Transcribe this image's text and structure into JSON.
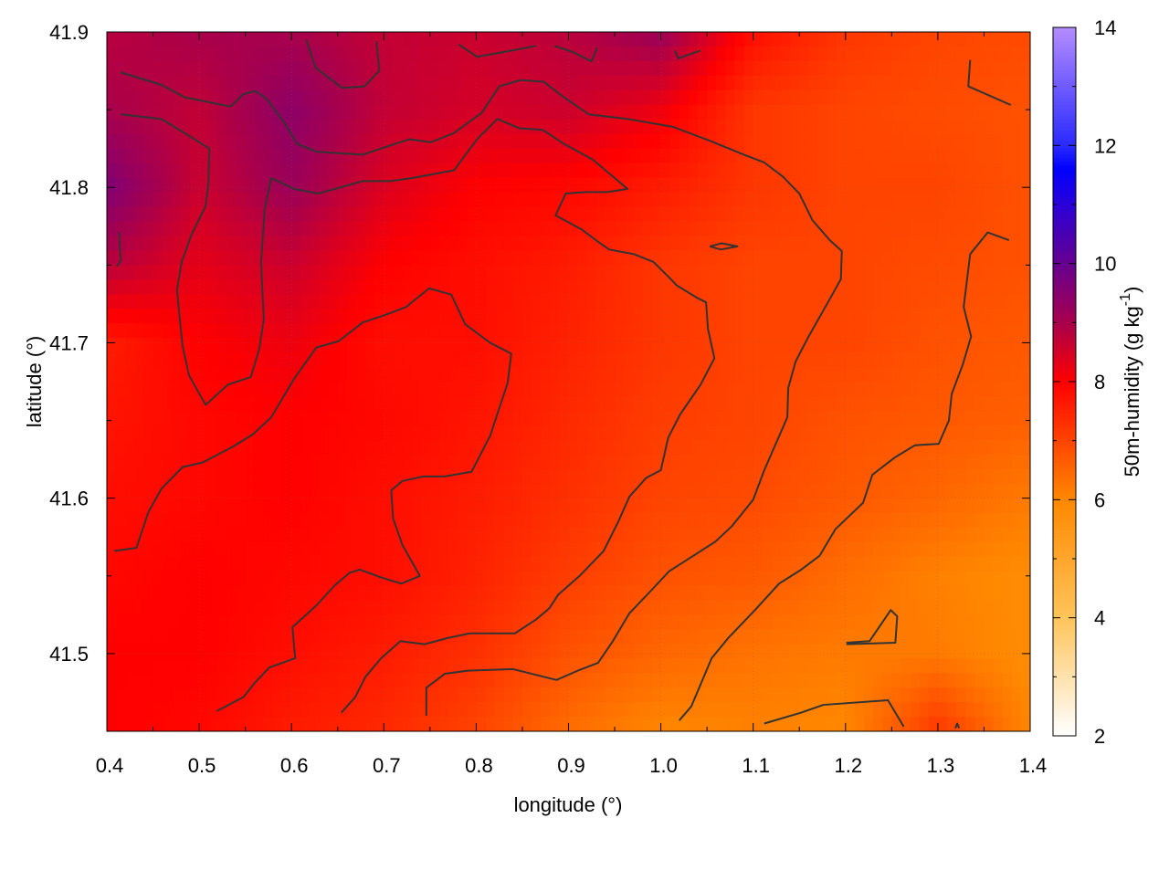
{
  "chart_data": {
    "type": "heatmap",
    "title": "",
    "xlabel": "longitude (°)",
    "ylabel": "latitude (°)",
    "colorbar_label": "50m-humidity (g kg",
    "colorbar_label_sup": "-1",
    "colorbar_label_end": ")",
    "xlim": [
      0.4,
      1.4
    ],
    "ylim": [
      41.45,
      41.9
    ],
    "clim": [
      2,
      14
    ],
    "x_ticks": [
      0.4,
      0.5,
      0.6,
      0.7,
      0.8,
      0.9,
      1.0,
      1.1,
      1.2,
      1.3,
      1.4
    ],
    "x_tick_labels": [
      "0.4",
      "0.5",
      "0.6",
      "0.7",
      "0.8",
      "0.9",
      "1.0",
      "1.1",
      "1.2",
      "1.3",
      "1.4"
    ],
    "y_ticks": [
      41.5,
      41.6,
      41.7,
      41.8,
      41.9
    ],
    "y_tick_labels": [
      "41.5",
      "41.6",
      "41.7",
      "41.8",
      "41.9"
    ],
    "c_ticks": [
      2,
      4,
      6,
      8,
      10,
      12,
      14
    ],
    "c_tick_labels": [
      "2",
      "4",
      "6",
      "8",
      "10",
      "12",
      "14"
    ],
    "grid": true,
    "colormap": [
      {
        "v": 2,
        "color": "#ffffff"
      },
      {
        "v": 4,
        "color": "#ffc45a"
      },
      {
        "v": 6,
        "color": "#ff8800"
      },
      {
        "v": 8,
        "color": "#ff0000"
      },
      {
        "v": 9,
        "color": "#a8004c"
      },
      {
        "v": 10,
        "color": "#660090"
      },
      {
        "v": 11,
        "color": "#2a00d8"
      },
      {
        "v": 11.6,
        "color": "#0000ff"
      },
      {
        "v": 12,
        "color": "#2a2aff"
      },
      {
        "v": 14,
        "color": "#b48cff"
      }
    ],
    "grid_lon": [
      0.4,
      0.5,
      0.6,
      0.7,
      0.8,
      0.9,
      1.0,
      1.1,
      1.2,
      1.3,
      1.4
    ],
    "grid_lat": [
      41.9,
      41.85,
      41.8,
      41.75,
      41.7,
      41.65,
      41.6,
      41.55,
      41.5,
      41.45
    ],
    "values": [
      [
        8.8,
        9.0,
        9.0,
        8.7,
        8.6,
        8.8,
        9.2,
        7.8,
        7.2,
        7.0,
        6.9
      ],
      [
        9.0,
        8.7,
        9.4,
        8.7,
        8.5,
        8.6,
        8.2,
        7.2,
        7.0,
        6.9,
        6.8
      ],
      [
        9.6,
        8.6,
        9.2,
        8.4,
        8.0,
        7.9,
        7.6,
        7.2,
        7.0,
        7.0,
        6.8
      ],
      [
        8.8,
        8.3,
        8.6,
        8.0,
        7.8,
        7.6,
        7.2,
        7.0,
        7.0,
        6.9,
        6.8
      ],
      [
        7.6,
        8.0,
        8.2,
        7.8,
        7.8,
        7.5,
        7.2,
        7.0,
        7.0,
        6.8,
        6.7
      ],
      [
        7.7,
        7.9,
        8.0,
        7.9,
        7.7,
        7.4,
        7.1,
        7.0,
        6.8,
        6.7,
        6.6
      ],
      [
        7.8,
        7.9,
        8.0,
        7.8,
        7.6,
        7.3,
        7.0,
        6.9,
        6.7,
        6.5,
        6.2
      ],
      [
        7.9,
        8.0,
        7.9,
        7.8,
        7.5,
        7.1,
        6.8,
        6.7,
        6.4,
        6.1,
        5.9
      ],
      [
        8.0,
        8.0,
        7.8,
        7.6,
        7.3,
        6.8,
        6.5,
        6.3,
        6.2,
        6.2,
        5.9
      ],
      [
        8.0,
        7.9,
        7.6,
        7.4,
        7.0,
        6.4,
        6.0,
        6.1,
        6.0,
        7.2,
        6.0
      ]
    ],
    "contour_color": "#333333",
    "contours": [
      [
        [
          0.415,
          41.874
        ],
        [
          0.459,
          41.866
        ],
        [
          0.484,
          41.858
        ],
        [
          0.534,
          41.852
        ],
        [
          0.548,
          41.86
        ],
        [
          0.561,
          41.862
        ],
        [
          0.573,
          41.857
        ],
        [
          0.593,
          41.841
        ],
        [
          0.606,
          41.828
        ],
        [
          0.627,
          41.823
        ],
        [
          0.677,
          41.821
        ],
        [
          0.707,
          41.827
        ],
        [
          0.728,
          41.831
        ],
        [
          0.751,
          41.829
        ],
        [
          0.776,
          41.835
        ],
        [
          0.806,
          41.848
        ],
        [
          0.825,
          41.865
        ],
        [
          0.848,
          41.869
        ],
        [
          0.873,
          41.868
        ],
        [
          0.895,
          41.858
        ],
        [
          0.922,
          41.847
        ],
        [
          0.964,
          41.844
        ],
        [
          1.013,
          41.839
        ],
        [
          1.053,
          41.83
        ],
        [
          1.09,
          41.821
        ],
        [
          1.112,
          41.816
        ],
        [
          1.132,
          41.807
        ],
        [
          1.15,
          41.796
        ],
        [
          1.164,
          41.779
        ],
        [
          1.183,
          41.766
        ],
        [
          1.196,
          41.759
        ],
        [
          1.195,
          41.741
        ],
        [
          1.181,
          41.726
        ],
        [
          1.16,
          41.704
        ],
        [
          1.146,
          41.688
        ],
        [
          1.138,
          41.671
        ],
        [
          1.137,
          41.652
        ],
        [
          1.112,
          41.618
        ],
        [
          1.1,
          41.599
        ],
        [
          1.077,
          41.582
        ],
        [
          1.059,
          41.572
        ],
        [
          1.038,
          41.564
        ],
        [
          1.009,
          41.553
        ],
        [
          0.987,
          41.539
        ],
        [
          0.966,
          41.526
        ],
        [
          0.948,
          41.508
        ],
        [
          0.932,
          41.494
        ],
        [
          0.91,
          41.489
        ],
        [
          0.887,
          41.483
        ],
        [
          0.84,
          41.49
        ],
        [
          0.791,
          41.489
        ],
        [
          0.766,
          41.487
        ],
        [
          0.746,
          41.478
        ],
        [
          0.746,
          41.46
        ]
      ],
      [
        [
          0.415,
          41.847
        ],
        [
          0.459,
          41.844
        ],
        [
          0.484,
          41.835
        ],
        [
          0.511,
          41.825
        ],
        [
          0.51,
          41.803
        ],
        [
          0.507,
          41.788
        ],
        [
          0.492,
          41.77
        ],
        [
          0.481,
          41.752
        ],
        [
          0.476,
          41.734
        ],
        [
          0.479,
          41.715
        ],
        [
          0.482,
          41.698
        ],
        [
          0.489,
          41.679
        ],
        [
          0.507,
          41.66
        ],
        [
          0.531,
          41.673
        ],
        [
          0.556,
          41.678
        ],
        [
          0.565,
          41.696
        ],
        [
          0.57,
          41.715
        ],
        [
          0.567,
          41.752
        ],
        [
          0.571,
          41.786
        ],
        [
          0.578,
          41.806
        ],
        [
          0.603,
          41.799
        ],
        [
          0.629,
          41.796
        ],
        [
          0.677,
          41.804
        ],
        [
          0.707,
          41.804
        ],
        [
          0.731,
          41.806
        ],
        [
          0.776,
          41.811
        ],
        [
          0.801,
          41.831
        ],
        [
          0.823,
          41.844
        ],
        [
          0.847,
          41.838
        ],
        [
          0.872,
          41.837
        ],
        [
          0.895,
          41.828
        ],
        [
          0.926,
          41.818
        ],
        [
          0.964,
          41.799
        ],
        [
          0.942,
          41.797
        ],
        [
          0.919,
          41.797
        ],
        [
          0.897,
          41.796
        ],
        [
          0.886,
          41.782
        ],
        [
          0.914,
          41.773
        ],
        [
          0.932,
          41.765
        ],
        [
          0.944,
          41.76
        ],
        [
          0.971,
          41.757
        ],
        [
          0.992,
          41.752
        ],
        [
          1.009,
          41.742
        ],
        [
          1.017,
          41.737
        ],
        [
          1.039,
          41.729
        ],
        [
          1.049,
          41.726
        ],
        [
          1.051,
          41.709
        ],
        [
          1.058,
          41.69
        ],
        [
          1.043,
          41.673
        ],
        [
          1.021,
          41.654
        ],
        [
          1.008,
          41.639
        ],
        [
          1.0,
          41.618
        ],
        [
          0.984,
          41.613
        ],
        [
          0.966,
          41.601
        ],
        [
          0.954,
          41.585
        ],
        [
          0.938,
          41.566
        ],
        [
          0.912,
          41.55
        ],
        [
          0.889,
          41.538
        ],
        [
          0.879,
          41.529
        ],
        [
          0.865,
          41.522
        ],
        [
          0.842,
          41.513
        ],
        [
          0.793,
          41.513
        ],
        [
          0.769,
          41.51
        ],
        [
          0.744,
          41.506
        ],
        [
          0.718,
          41.508
        ],
        [
          0.697,
          41.497
        ],
        [
          0.68,
          41.485
        ],
        [
          0.669,
          41.472
        ],
        [
          0.654,
          41.462
        ]
      ],
      [
        [
          0.408,
          41.566
        ],
        [
          0.432,
          41.568
        ],
        [
          0.445,
          41.591
        ],
        [
          0.459,
          41.606
        ],
        [
          0.482,
          41.62
        ],
        [
          0.504,
          41.623
        ],
        [
          0.536,
          41.633
        ],
        [
          0.558,
          41.641
        ],
        [
          0.578,
          41.652
        ],
        [
          0.603,
          41.677
        ],
        [
          0.627,
          41.697
        ],
        [
          0.651,
          41.701
        ],
        [
          0.677,
          41.713
        ],
        [
          0.702,
          41.718
        ],
        [
          0.724,
          41.723
        ],
        [
          0.749,
          41.735
        ],
        [
          0.773,
          41.731
        ],
        [
          0.788,
          41.712
        ],
        [
          0.815,
          41.7
        ],
        [
          0.838,
          41.693
        ],
        [
          0.834,
          41.674
        ],
        [
          0.815,
          41.64
        ],
        [
          0.795,
          41.617
        ],
        [
          0.766,
          41.614
        ],
        [
          0.743,
          41.614
        ],
        [
          0.72,
          41.611
        ],
        [
          0.708,
          41.605
        ],
        [
          0.71,
          41.587
        ],
        [
          0.72,
          41.57
        ],
        [
          0.739,
          41.55
        ],
        [
          0.719,
          41.545
        ],
        [
          0.697,
          41.549
        ],
        [
          0.674,
          41.554
        ],
        [
          0.663,
          41.552
        ],
        [
          0.647,
          41.544
        ],
        [
          0.627,
          41.531
        ],
        [
          0.601,
          41.517
        ],
        [
          0.604,
          41.497
        ],
        [
          0.576,
          41.491
        ],
        [
          0.56,
          41.481
        ],
        [
          0.548,
          41.472
        ],
        [
          0.519,
          41.463
        ]
      ],
      [
        [
          1.335,
          41.882
        ],
        [
          1.333,
          41.865
        ],
        [
          1.379,
          41.853
        ]
      ],
      [
        [
          1.377,
          41.766
        ],
        [
          1.354,
          41.771
        ],
        [
          1.335,
          41.757
        ],
        [
          1.328,
          41.723
        ],
        [
          1.336,
          41.704
        ],
        [
          1.327,
          41.686
        ],
        [
          1.315,
          41.667
        ],
        [
          1.312,
          41.65
        ],
        [
          1.301,
          41.635
        ],
        [
          1.275,
          41.634
        ],
        [
          1.253,
          41.626
        ],
        [
          1.229,
          41.615
        ],
        [
          1.219,
          41.597
        ],
        [
          1.189,
          41.58
        ],
        [
          1.172,
          41.563
        ],
        [
          1.152,
          41.554
        ],
        [
          1.128,
          41.545
        ],
        [
          1.102,
          41.528
        ],
        [
          1.073,
          41.51
        ],
        [
          1.055,
          41.497
        ],
        [
          1.033,
          41.466
        ],
        [
          1.02,
          41.457
        ]
      ],
      [
        [
          1.112,
          41.455
        ],
        [
          1.152,
          41.462
        ],
        [
          1.176,
          41.467
        ],
        [
          1.246,
          41.47
        ],
        [
          1.263,
          41.453
        ]
      ],
      [
        [
          1.201,
          41.507
        ],
        [
          1.226,
          41.508
        ],
        [
          1.249,
          41.528
        ],
        [
          1.256,
          41.524
        ],
        [
          1.254,
          41.507
        ],
        [
          1.201,
          41.506
        ]
      ],
      [
        [
          1.053,
          41.762
        ],
        [
          1.066,
          41.764
        ],
        [
          1.083,
          41.762
        ],
        [
          1.065,
          41.76
        ],
        [
          1.053,
          41.762
        ]
      ],
      [
        [
          0.616,
          41.895
        ],
        [
          0.626,
          41.877
        ],
        [
          0.655,
          41.864
        ],
        [
          0.679,
          41.865
        ],
        [
          0.695,
          41.875
        ],
        [
          0.692,
          41.894
        ]
      ],
      [
        [
          0.781,
          41.892
        ],
        [
          0.801,
          41.884
        ],
        [
          0.829,
          41.887
        ],
        [
          0.865,
          41.891
        ]
      ],
      [
        [
          0.885,
          41.891
        ],
        [
          0.905,
          41.887
        ],
        [
          0.925,
          41.881
        ],
        [
          0.931,
          41.89
        ]
      ],
      [
        [
          1.015,
          41.888
        ],
        [
          1.019,
          41.883
        ],
        [
          1.043,
          41.888
        ]
      ],
      [
        [
          0.413,
          41.771
        ],
        [
          0.415,
          41.753
        ],
        [
          0.411,
          41.749
        ]
      ],
      [
        [
          1.319,
          41.452
        ],
        [
          1.321,
          41.455
        ],
        [
          1.323,
          41.452
        ]
      ]
    ]
  }
}
